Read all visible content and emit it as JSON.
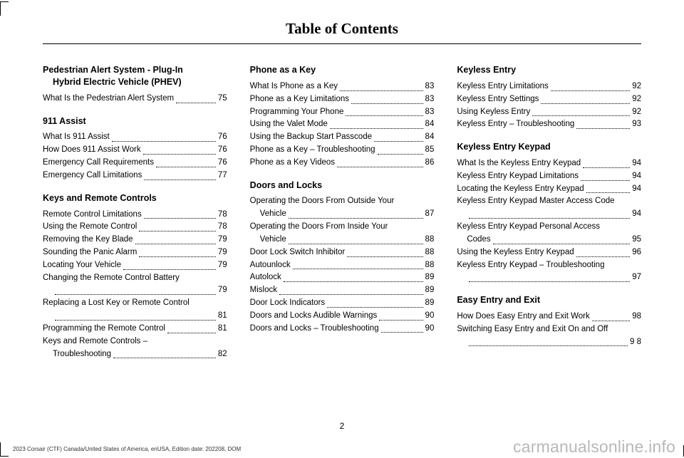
{
  "title": "Table of Contents",
  "pageNumber": "2",
  "footerLeft": "2023 Corsair (CTF) Canada/United States of America, enUSA, Edition date: 202208, DOM",
  "footerRight": "carmanualsonline.info",
  "columns": [
    {
      "sections": [
        {
          "heading": "Pedestrian Alert System - Plug-In",
          "headingCont": "Hybrid Electric Vehicle (PHEV)",
          "entries": [
            {
              "label": "What Is the Pedestrian Alert System",
              "page": "75"
            }
          ]
        },
        {
          "heading": "911 Assist",
          "entries": [
            {
              "label": "What Is 911 Assist",
              "page": "76"
            },
            {
              "label": "How Does 911 Assist Work",
              "page": "76"
            },
            {
              "label": "Emergency Call Requirements",
              "page": "76"
            },
            {
              "label": "Emergency Call Limitations",
              "page": "77"
            }
          ]
        },
        {
          "heading": "Keys and Remote Controls",
          "entries": [
            {
              "label": "Remote Control Limitations",
              "page": "78"
            },
            {
              "label": "Using the Remote Control",
              "page": "78"
            },
            {
              "label": "Removing the Key Blade",
              "page": "79"
            },
            {
              "label": "Sounding the Panic Alarm",
              "page": "79"
            },
            {
              "label": "Locating Your Vehicle",
              "page": "79"
            },
            {
              "label": "Changing the Remote Control Battery",
              "cont": "",
              "page": "79"
            },
            {
              "label": "Replacing a Lost Key or Remote Control",
              "cont": "",
              "page": "81"
            },
            {
              "label": "Programming the Remote Control",
              "page": "81"
            },
            {
              "label": "Keys and Remote Controls –",
              "cont": "Troubleshooting",
              "page": "82"
            }
          ]
        }
      ]
    },
    {
      "sections": [
        {
          "heading": "Phone as a Key",
          "entries": [
            {
              "label": "What Is Phone as a Key",
              "page": "83"
            },
            {
              "label": "Phone as a Key Limitations",
              "page": "83"
            },
            {
              "label": "Programming Your Phone",
              "page": "83"
            },
            {
              "label": "Using the Valet Mode",
              "page": "84"
            },
            {
              "label": "Using the Backup Start Passcode",
              "page": "84"
            },
            {
              "label": "Phone as a Key – Troubleshooting",
              "page": "85"
            },
            {
              "label": "Phone as a Key Videos",
              "page": "86"
            }
          ]
        },
        {
          "heading": "Doors and Locks",
          "entries": [
            {
              "label": "Operating the Doors From Outside Your",
              "cont": "Vehicle",
              "page": "87"
            },
            {
              "label": "Operating the Doors From Inside Your",
              "cont": "Vehicle",
              "page": "88"
            },
            {
              "label": "Door Lock Switch Inhibitor",
              "page": "88"
            },
            {
              "label": "Autounlock",
              "page": "88"
            },
            {
              "label": "Autolock",
              "page": "89"
            },
            {
              "label": "Mislock",
              "page": "89"
            },
            {
              "label": "Door Lock Indicators",
              "page": "89"
            },
            {
              "label": "Doors and Locks Audible Warnings",
              "page": "90"
            },
            {
              "label": "Doors and Locks – Troubleshooting",
              "page": "90"
            }
          ]
        }
      ]
    },
    {
      "sections": [
        {
          "heading": "Keyless Entry",
          "entries": [
            {
              "label": "Keyless Entry Limitations",
              "page": "92"
            },
            {
              "label": "Keyless Entry Settings",
              "page": "92"
            },
            {
              "label": "Using Keyless Entry",
              "page": "92"
            },
            {
              "label": "Keyless Entry – Troubleshooting",
              "page": "93"
            }
          ]
        },
        {
          "heading": "Keyless Entry Keypad",
          "entries": [
            {
              "label": "What Is the Keyless Entry Keypad",
              "page": "94"
            },
            {
              "label": "Keyless Entry Keypad Limitations",
              "page": "94"
            },
            {
              "label": "Locating the Keyless Entry Keypad",
              "page": "94"
            },
            {
              "label": "Keyless Entry Keypad Master Access Code",
              "cont": "",
              "page": "94"
            },
            {
              "label": "Keyless Entry Keypad Personal Access",
              "cont": "Codes",
              "page": "95"
            },
            {
              "label": "Using the Keyless Entry Keypad",
              "page": "96"
            },
            {
              "label": "Keyless Entry Keypad – Troubleshooting",
              "cont": "",
              "page": "97"
            }
          ]
        },
        {
          "heading": "Easy Entry and Exit",
          "entries": [
            {
              "label": "How Does Easy Entry and Exit Work",
              "page": "98"
            },
            {
              "label": "Switching Easy Entry and Exit On and Off",
              "cont": "",
              "page": "9 8"
            }
          ]
        }
      ]
    }
  ]
}
